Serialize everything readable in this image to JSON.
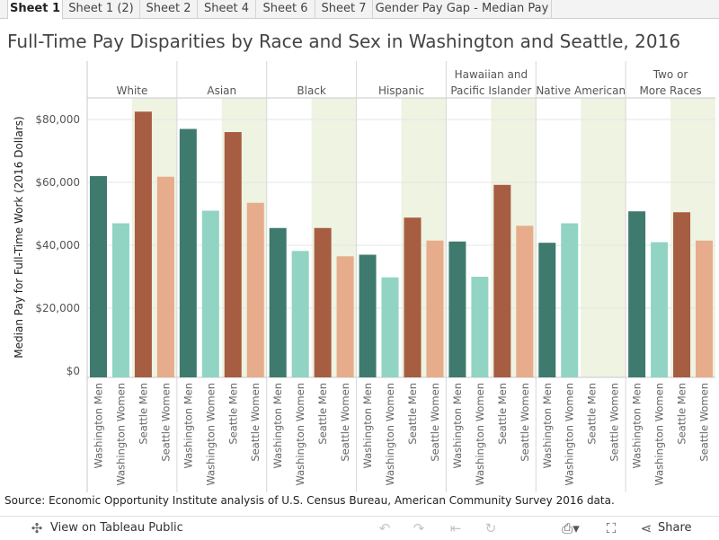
{
  "tabs": [
    {
      "label": "Sheet 1",
      "active": true
    },
    {
      "label": "Sheet 1 (2)",
      "active": false
    },
    {
      "label": "Sheet 2",
      "active": false
    },
    {
      "label": "Sheet 4",
      "active": false
    },
    {
      "label": "Sheet 6",
      "active": false
    },
    {
      "label": "Sheet 7",
      "active": false
    },
    {
      "label": "Gender Pay Gap - Median Pay",
      "active": false
    }
  ],
  "source_note": "Source: Economic Opportunity Institute analysis of U.S. Census Bureau, American Community Survey 2016 data.",
  "toolbar": {
    "view_label": "View on Tableau Public",
    "share_label": "Share",
    "icons": [
      "tableau-icon",
      "undo-icon",
      "redo-icon",
      "revert-icon",
      "refresh-icon",
      "download-icon",
      "fullscreen-icon",
      "share-icon"
    ]
  },
  "colors": {
    "Washington Men": "#3f7a6e",
    "Washington Women": "#91d4c3",
    "Seattle Men": "#a65d42",
    "Seattle Women": "#e6ac8c",
    "seattle_band": "#eef3e2"
  },
  "chart_data": {
    "type": "bar",
    "title": "Full-Time Pay Disparities by Race and Sex in Washington and Seattle, 2016",
    "ylabel": "Median Pay for Full-Time Work (2016 Dollars)",
    "ylim": [
      0,
      90000
    ],
    "yticks": [
      "$0",
      "$20,000",
      "$40,000",
      "$60,000",
      "$80,000"
    ],
    "ytick_values": [
      0,
      20000,
      40000,
      60000,
      80000
    ],
    "categories": [
      "Washington Men",
      "Washington Women",
      "Seattle Men",
      "Seattle Women"
    ],
    "groups": [
      {
        "name": "White",
        "values": [
          62000,
          47000,
          82500,
          61800
        ]
      },
      {
        "name": "Asian",
        "values": [
          77000,
          51000,
          76000,
          53500
        ]
      },
      {
        "name": "Black",
        "values": [
          45500,
          38200,
          45500,
          36500
        ]
      },
      {
        "name": "Hispanic",
        "values": [
          37000,
          29800,
          48800,
          41500
        ]
      },
      {
        "name": "Hawaiian and Pacific Islander",
        "values": [
          41200,
          30000,
          59200,
          46200
        ]
      },
      {
        "name": "Native American",
        "values": [
          40800,
          47000,
          null,
          null
        ]
      },
      {
        "name": "Two or More Races",
        "values": [
          50800,
          41000,
          50500,
          41500
        ]
      }
    ],
    "grid": true
  }
}
